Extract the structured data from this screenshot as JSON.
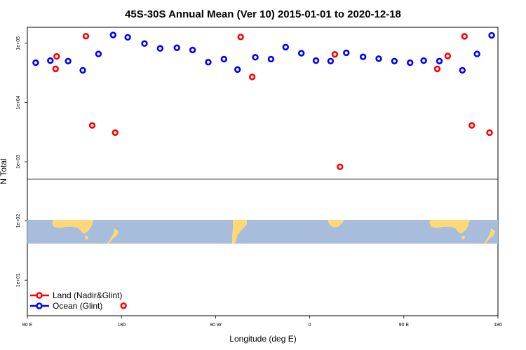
{
  "chart_data": {
    "type": "scatter",
    "title": "45S-30S Annual Mean (Ver 10)   2015-01-01 to 2020-12-18",
    "xlabel": "Longitude (deg E)",
    "ylabel": "N Total",
    "x_tick_labels": [
      "90 E",
      "180",
      "90 W",
      "0",
      "90 E",
      "180"
    ],
    "y_tick_labels": [
      "1e+05",
      "1e+04",
      "1e+03",
      "1e+02",
      "1e+01"
    ],
    "x_ticks_deg": [
      90,
      180,
      270,
      360,
      450,
      540
    ],
    "xlim": [
      90,
      540
    ],
    "ylog_range": [
      0.4,
      5.27
    ],
    "y_ticks_log": [
      5,
      4,
      3,
      2,
      1
    ],
    "series": [
      {
        "name": "Land (Nadir&Glint)",
        "color": "#ff0000",
        "points": [
          {
            "x": 118,
            "y": 60000
          },
          {
            "x": 146,
            "y": 132000
          },
          {
            "x": 152,
            "y": 4100
          },
          {
            "x": 174,
            "y": 3100
          },
          {
            "x": 117,
            "y": 37000
          },
          {
            "x": 182,
            "y": 3.7
          },
          {
            "x": 294,
            "y": 128000
          },
          {
            "x": 305,
            "y": 27000
          },
          {
            "x": 384,
            "y": 65000
          },
          {
            "x": 389,
            "y": 820
          },
          {
            "x": 492,
            "y": 61000
          },
          {
            "x": 482,
            "y": 37000
          },
          {
            "x": 508,
            "y": 131000
          },
          {
            "x": 515,
            "y": 4100
          },
          {
            "x": 532,
            "y": 3100
          }
        ]
      },
      {
        "name": "Ocean (Glint)",
        "color": "#0000ff",
        "points": [
          {
            "x": 98,
            "y": 47000
          },
          {
            "x": 112,
            "y": 51000
          },
          {
            "x": 129,
            "y": 50000
          },
          {
            "x": 143,
            "y": 35000
          },
          {
            "x": 158,
            "y": 66000
          },
          {
            "x": 172,
            "y": 138000
          },
          {
            "x": 186,
            "y": 126000
          },
          {
            "x": 202,
            "y": 99000
          },
          {
            "x": 217,
            "y": 82000
          },
          {
            "x": 233,
            "y": 84000
          },
          {
            "x": 248,
            "y": 77000
          },
          {
            "x": 263,
            "y": 48000
          },
          {
            "x": 278,
            "y": 54000
          },
          {
            "x": 291,
            "y": 36000
          },
          {
            "x": 308,
            "y": 58000
          },
          {
            "x": 323,
            "y": 54000
          },
          {
            "x": 337,
            "y": 86000
          },
          {
            "x": 352,
            "y": 68000
          },
          {
            "x": 366,
            "y": 51000
          },
          {
            "x": 380,
            "y": 50000
          },
          {
            "x": 395,
            "y": 69000
          },
          {
            "x": 411,
            "y": 59000
          },
          {
            "x": 426,
            "y": 55000
          },
          {
            "x": 441,
            "y": 50000
          },
          {
            "x": 456,
            "y": 47000
          },
          {
            "x": 469,
            "y": 51000
          },
          {
            "x": 484,
            "y": 50000
          },
          {
            "x": 506,
            "y": 35000
          },
          {
            "x": 520,
            "y": 66000
          },
          {
            "x": 534,
            "y": 136000
          }
        ]
      }
    ],
    "legend_position": "bottom-left",
    "map_strip": {
      "ocean_color": "#a8bcdc",
      "land_color": "#fcd878"
    }
  }
}
